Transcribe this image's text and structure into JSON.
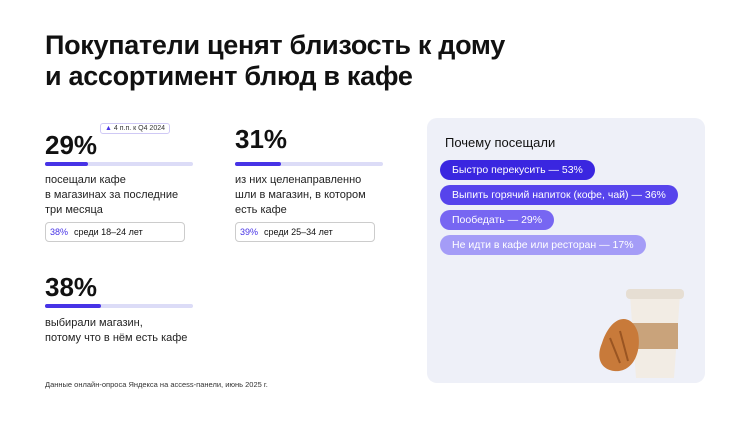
{
  "header": {
    "title_lines": [
      "Покупатели ценят близость к дому",
      "и ассортимент блюд в кафе"
    ]
  },
  "stats": [
    {
      "value": 29,
      "value_label": "29%",
      "badge": "4 п.п. к Q4 2024",
      "description": [
        "посещали кафе",
        "в магазинах за последние",
        "три месяца"
      ],
      "sub": {
        "value_label": "38%",
        "text": "среди 18–24 лет"
      }
    },
    {
      "value": 31,
      "value_label": "31%",
      "description": [
        "из них целенаправленно",
        "шли в магазин, в котором",
        "есть кафе"
      ],
      "sub": {
        "value_label": "39%",
        "text": "среди 25–34 лет"
      }
    },
    {
      "value": 38,
      "value_label": "38%",
      "description": [
        "выбирали магазин,",
        "потому что в нём есть кафе"
      ]
    }
  ],
  "panel": {
    "title": "Почему посещали",
    "items": [
      "Быстро перекусить — 53%",
      "Выпить горячий напиток (кофе, чай) — 36%",
      "Пообедать — 29%",
      "Не идти в кафе или ресторан — 17%"
    ]
  },
  "footnote": "Данные онлайн-опроса Яндекса на access-панели, июнь 2025 г."
}
